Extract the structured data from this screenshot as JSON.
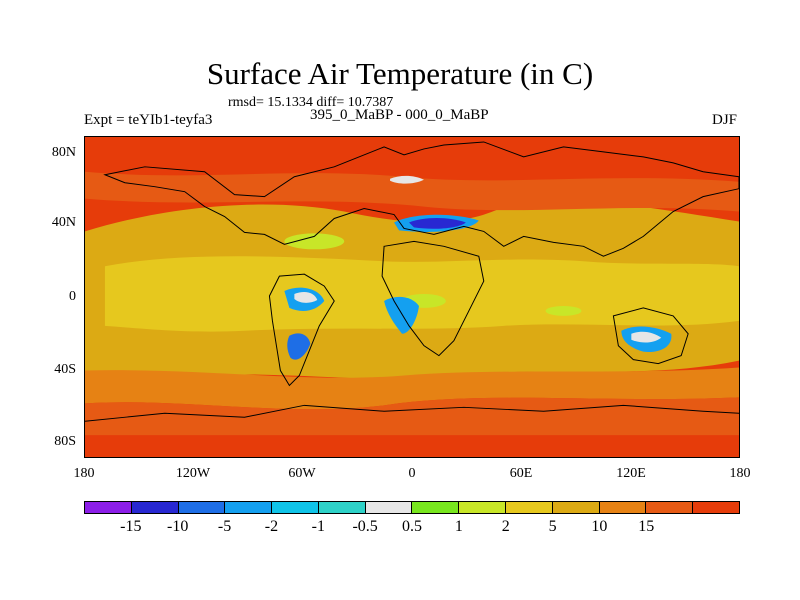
{
  "title": "Surface Air Temperature (in C)",
  "stats": "rmsd= 15.1334 diff= 10.7387",
  "subtitle": "395_0_MaBP - 000_0_MaBP",
  "experiment": "Expt = teYIb1-teyfa3",
  "season": "DJF",
  "axes": {
    "y_ticks": [
      "80N",
      "40N",
      "0",
      "40S",
      "80S"
    ],
    "x_ticks": [
      "180",
      "120W",
      "60W",
      "0",
      "60E",
      "120E",
      "180"
    ]
  },
  "colorbar": {
    "colors": [
      "#8c1ee8",
      "#2828d2",
      "#1e6ee6",
      "#14a0f0",
      "#10c4e8",
      "#2ed2c8",
      "#e6e6e6",
      "#78e61e",
      "#c8e628",
      "#e6c81e",
      "#dcaa14",
      "#e68214",
      "#e65a14",
      "#e63c0a"
    ],
    "labels": [
      "-15",
      "-10",
      "-5",
      "-2",
      "-1",
      "-0.5",
      "0.5",
      "1",
      "2",
      "5",
      "10",
      "15"
    ]
  },
  "map_colors": {
    "hot": "#e63c0a",
    "warm": "#e65a14",
    "mid": "#e68214",
    "gold": "#dcaa14",
    "yellow": "#e6c81e",
    "lime": "#c8e628",
    "white": "#e6e6e6",
    "cyan": "#14a0f0",
    "blue": "#1e6ee6",
    "deep": "#2828d2"
  }
}
